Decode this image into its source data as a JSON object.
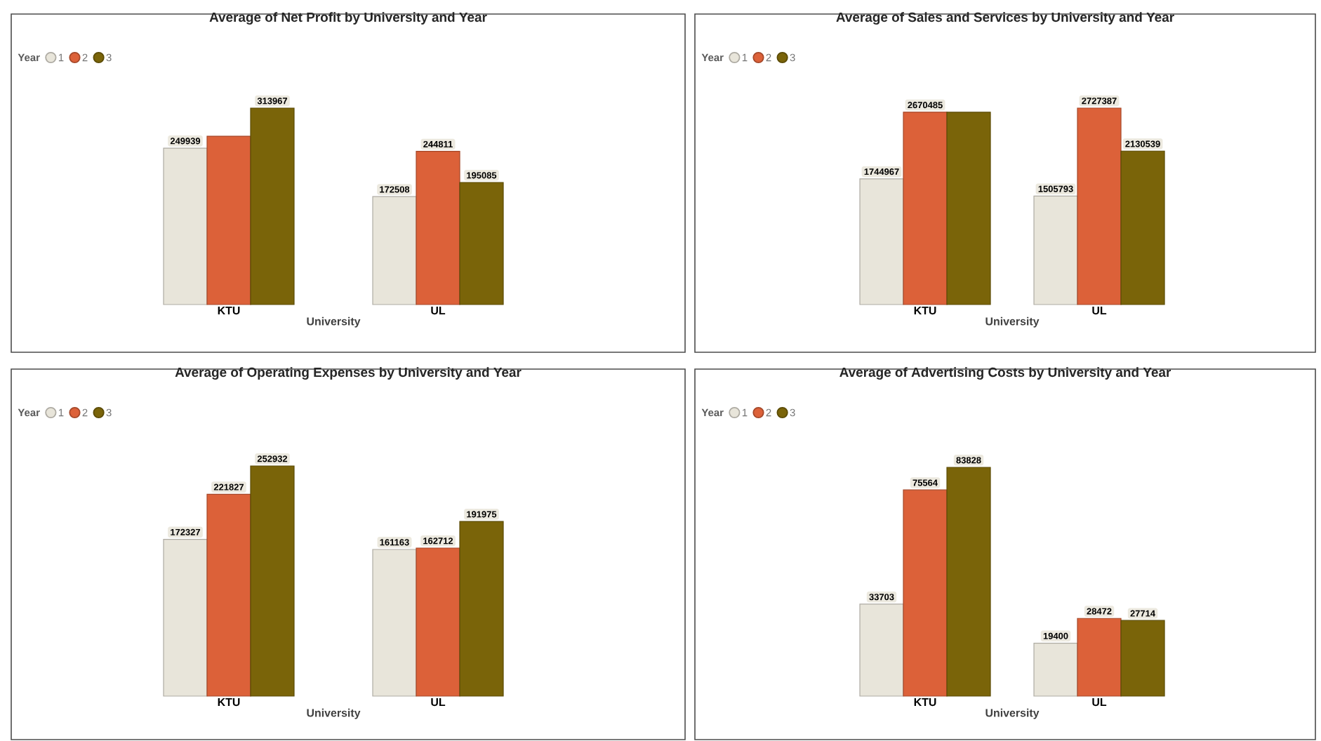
{
  "chart_data": [
    {
      "type": "bar",
      "title": "Average of Net Profit by University and Year",
      "xlabel": "University",
      "legend_title": "Year",
      "legend": "top left",
      "tick_labels": "x",
      "categories": [
        "KTU",
        "UL"
      ],
      "series": [
        {
          "name": "1",
          "color": "#e8e5da",
          "values": [
            249939,
            172508
          ],
          "value_labels": [
            "249939",
            "172508"
          ]
        },
        {
          "name": "2",
          "color": "#dc6139",
          "values": [
            269000,
            244811
          ],
          "value_labels": [
            null,
            "244811"
          ]
        },
        {
          "name": "3",
          "color": "#7a6409",
          "values": [
            313967,
            195085
          ],
          "value_labels": [
            "313967",
            "195085"
          ]
        }
      ]
    },
    {
      "type": "bar",
      "title": "Average of Sales and Services by University and Year",
      "xlabel": "University",
      "legend_title": "Year",
      "legend": "top left",
      "tick_labels": "x",
      "categories": [
        "KTU",
        "UL"
      ],
      "series": [
        {
          "name": "1",
          "color": "#e8e5da",
          "values": [
            1744967,
            1505793
          ],
          "value_labels": [
            "1744967",
            "1505793"
          ]
        },
        {
          "name": "2",
          "color": "#dc6139",
          "values": [
            2670485,
            2727387
          ],
          "value_labels": [
            "2670485",
            "2727387"
          ]
        },
        {
          "name": "3",
          "color": "#7a6409",
          "values": [
            2670000,
            2130539
          ],
          "value_labels": [
            null,
            "2130539"
          ]
        }
      ]
    },
    {
      "type": "bar",
      "title": "Average of Operating Expenses by University and Year",
      "xlabel": "University",
      "legend_title": "Year",
      "legend": "top left",
      "tick_labels": "x",
      "data_labels": true,
      "categories": [
        "KTU",
        "UL"
      ],
      "series": [
        {
          "name": "1",
          "color": "#e8e5da",
          "values": [
            172327,
            161163
          ]
        },
        {
          "name": "2",
          "color": "#dc6139",
          "values": [
            221827,
            162712
          ]
        },
        {
          "name": "3",
          "color": "#7a6409",
          "values": [
            252932,
            191975
          ]
        }
      ]
    },
    {
      "type": "bar",
      "title": "Average of Advertising Costs by University and Year",
      "xlabel": "University",
      "legend_title": "Year",
      "legend": "top left",
      "tick_labels": "x",
      "data_labels": true,
      "categories": [
        "KTU",
        "UL"
      ],
      "series": [
        {
          "name": "1",
          "color": "#e8e5da",
          "values": [
            33703,
            19400
          ]
        },
        {
          "name": "2",
          "color": "#dc6139",
          "values": [
            75564,
            28472
          ]
        },
        {
          "name": "3",
          "color": "#7a6409",
          "values": [
            83828,
            27714
          ]
        }
      ]
    }
  ]
}
